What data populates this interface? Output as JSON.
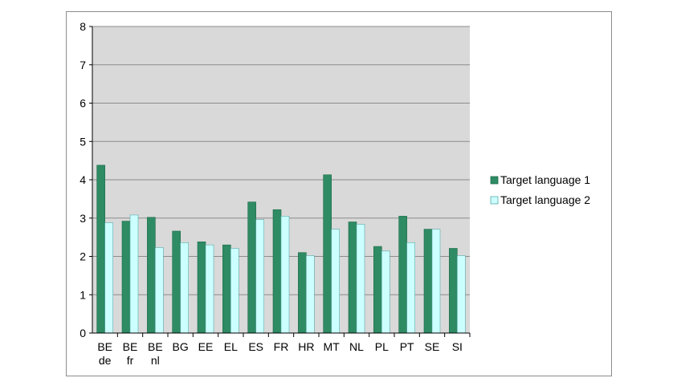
{
  "chart_data": {
    "type": "bar",
    "categories": [
      [
        "BE",
        "de"
      ],
      [
        "BE",
        "fr"
      ],
      [
        "BE",
        "nl"
      ],
      [
        "BG"
      ],
      [
        "EE"
      ],
      [
        "EL"
      ],
      [
        "ES"
      ],
      [
        "FR"
      ],
      [
        "HR"
      ],
      [
        "MT"
      ],
      [
        "NL"
      ],
      [
        "PL"
      ],
      [
        "PT"
      ],
      [
        "SE"
      ],
      [
        "SI"
      ]
    ],
    "series": [
      {
        "name": "Target language 1",
        "color": "#2e8b63",
        "values": [
          4.38,
          2.92,
          3.02,
          2.66,
          2.38,
          2.3,
          3.42,
          3.22,
          2.1,
          4.13,
          2.9,
          2.26,
          3.05,
          2.71,
          2.21
        ]
      },
      {
        "name": "Target language 2",
        "color": "#ccffff",
        "values": [
          2.88,
          3.08,
          2.23,
          2.36,
          2.3,
          2.21,
          2.96,
          3.05,
          2.02,
          2.71,
          2.84,
          2.14,
          2.36,
          2.71,
          2.02
        ]
      }
    ],
    "yticks": [
      "0",
      "1",
      "2",
      "3",
      "4",
      "5",
      "6",
      "7",
      "8"
    ],
    "ylim": [
      0,
      8
    ],
    "grid": true,
    "legend_position": "right",
    "plot_background": "#d9d9d9"
  }
}
